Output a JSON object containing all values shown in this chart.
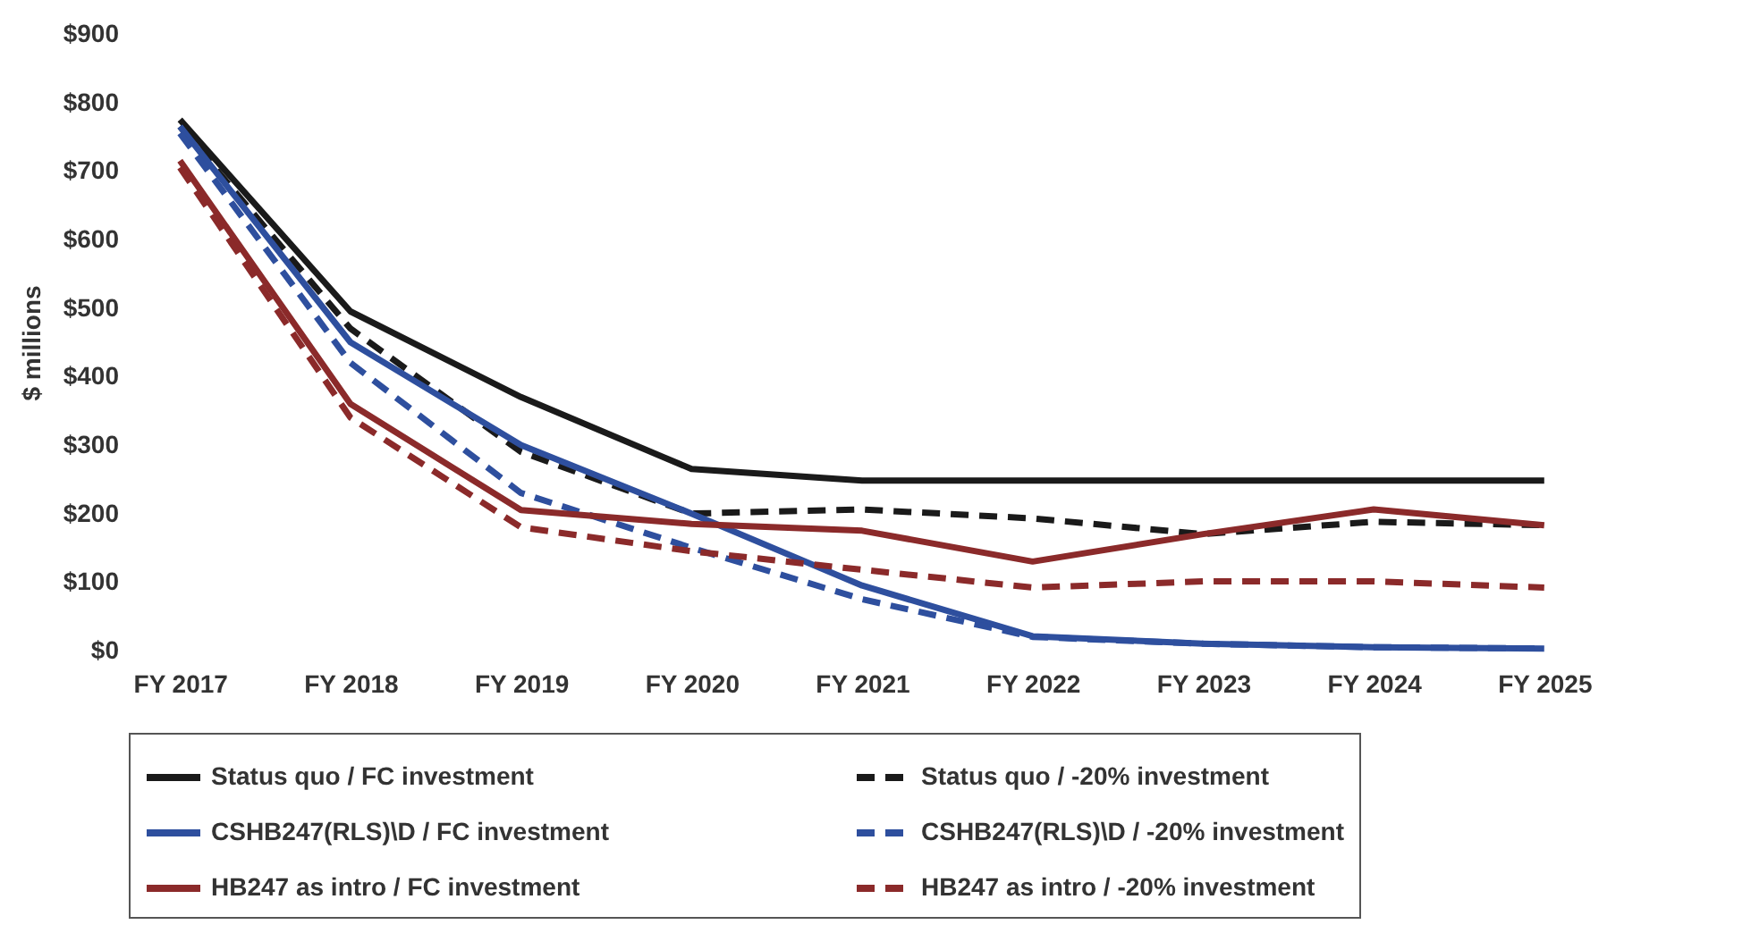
{
  "chart_data": {
    "type": "line",
    "ylabel": "$ millions",
    "categories": [
      "FY 2017",
      "FY 2018",
      "FY 2019",
      "FY 2020",
      "FY 2021",
      "FY 2022",
      "FY 2023",
      "FY 2024",
      "FY 2025"
    ],
    "series": [
      {
        "name": "Status quo / FC investment",
        "color": "#1a1a1a",
        "line_style": "solid",
        "values": [
          775,
          495,
          370,
          265,
          248,
          248,
          248,
          248,
          248
        ]
      },
      {
        "name": "Status quo / -20% investment",
        "color": "#1a1a1a",
        "line_style": "dashed",
        "values": [
          765,
          470,
          290,
          200,
          206,
          193,
          170,
          188,
          183
        ]
      },
      {
        "name": "CSHB247(RLS)\\D / FC investment",
        "color": "#2e4f9e",
        "line_style": "solid",
        "values": [
          765,
          450,
          300,
          200,
          95,
          21,
          10,
          5,
          3
        ]
      },
      {
        "name": "CSHB247(RLS)\\D / -20% investment",
        "color": "#2e4f9e",
        "line_style": "dashed",
        "values": [
          755,
          420,
          230,
          150,
          75,
          20,
          10,
          5,
          3
        ]
      },
      {
        "name": "HB247 as intro / FC investment",
        "color": "#8b2a2a",
        "line_style": "solid",
        "values": [
          715,
          360,
          205,
          185,
          175,
          130,
          170,
          206,
          183
        ]
      },
      {
        "name": "HB247 as intro / -20% investment",
        "color": "#8b2a2a",
        "line_style": "dashed",
        "values": [
          705,
          340,
          180,
          145,
          118,
          92,
          101,
          101,
          92
        ]
      }
    ],
    "ylim": [
      0,
      900
    ],
    "yticks": [
      {
        "value": 0,
        "label": "$0"
      },
      {
        "value": 100,
        "label": "$100"
      },
      {
        "value": 200,
        "label": "$200"
      },
      {
        "value": 300,
        "label": "$300"
      },
      {
        "value": 400,
        "label": "$400"
      },
      {
        "value": 500,
        "label": "$500"
      },
      {
        "value": 600,
        "label": "$600"
      },
      {
        "value": 700,
        "label": "$700"
      },
      {
        "value": 800,
        "label": "$800"
      },
      {
        "value": 900,
        "label": "$900"
      }
    ],
    "grid": false,
    "legend": "bottom",
    "marker": "none"
  }
}
